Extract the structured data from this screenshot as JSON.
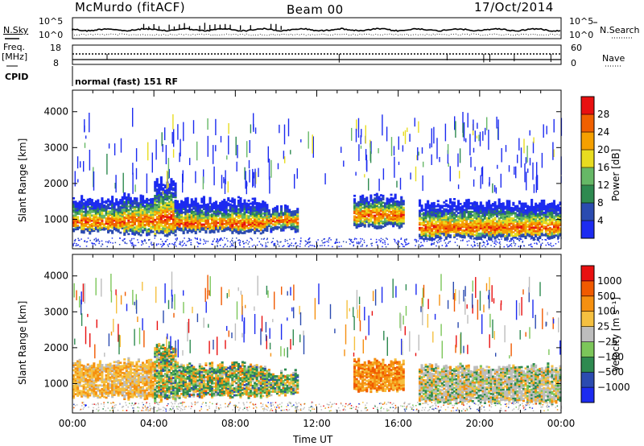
{
  "header": {
    "station": "McMurdo (fitACF)",
    "beam": "Beam 00",
    "date": "17/Oct/2014"
  },
  "noise_panel": {
    "left_label": "N.Sky",
    "left_top_tick": "10^5",
    "left_bottom_tick": "10^0",
    "right_label": "N.Search",
    "right_top_tick": "10^5",
    "right_bottom_tick": "10^0"
  },
  "freq_panel": {
    "left_label_line1": "Freq.",
    "left_label_line2": "[MHz]",
    "left_ticks": [
      "18",
      "8"
    ],
    "right_label": "Nave",
    "right_ticks": [
      "60",
      "0"
    ]
  },
  "cpid": {
    "label": "CPID",
    "text": "normal (fast) 151 RF"
  },
  "colors": {
    "power": [
      "#1c2bf0",
      "#2b4bb0",
      "#2e8a50",
      "#66b866",
      "#e8dc20",
      "#f5a000",
      "#f06000",
      "#e81010"
    ],
    "velocity": [
      "#e81010",
      "#f05a00",
      "#f59010",
      "#f5c040",
      "#bdbdbd",
      "#7cc65a",
      "#2e8a50",
      "#2b4bb0",
      "#1c2bf0"
    ]
  },
  "chart_data": [
    {
      "type": "heatmap",
      "name": "power",
      "ylabel": "Slant Range [km]",
      "xlabel": "Time UT",
      "ylim": [
        180,
        4600
      ],
      "yticks": [
        "1000",
        "2000",
        "3000",
        "4000"
      ],
      "xticks": [
        "00:00",
        "04:00",
        "08:00",
        "12:00",
        "16:00",
        "20:00",
        "00:00"
      ],
      "colorbar_label": "Power [dB]",
      "colorbar_ticks": [
        "4",
        "8",
        "12",
        "16",
        "20",
        "24",
        "28"
      ],
      "bands": [
        {
          "t0": 0.0,
          "t1": 2.5,
          "lo": 650,
          "hi": 1550,
          "core": 900
        },
        {
          "t0": 2.5,
          "t1": 4.0,
          "lo": 600,
          "hi": 1600,
          "core": 950
        },
        {
          "t0": 4.0,
          "t1": 5.0,
          "lo": 550,
          "hi": 2050,
          "core": 1000
        },
        {
          "t0": 5.0,
          "t1": 9.5,
          "lo": 650,
          "hi": 1500,
          "core": 850
        },
        {
          "t0": 9.5,
          "t1": 11.0,
          "lo": 700,
          "hi": 1300,
          "core": 950
        },
        {
          "t0": 13.8,
          "t1": 16.2,
          "lo": 800,
          "hi": 1600,
          "core": 1100
        },
        {
          "t0": 17.0,
          "t1": 24.0,
          "lo": 480,
          "hi": 1450,
          "core": 750
        }
      ]
    },
    {
      "type": "heatmap",
      "name": "velocity",
      "ylabel": "Slant Range [km]",
      "xlabel": "Time UT",
      "ylim": [
        180,
        4600
      ],
      "yticks": [
        "1000",
        "2000",
        "3000",
        "4000"
      ],
      "xticks": [
        "00:00",
        "04:00",
        "08:00",
        "12:00",
        "16:00",
        "20:00",
        "00:00"
      ],
      "colorbar_label": "Velocity [m s⁻¹]",
      "colorbar_ticks": [
        "1000",
        "500",
        "100",
        "25",
        "−25",
        "−100",
        "−500",
        "−1000"
      ],
      "bands": [
        {
          "t0": 0.0,
          "t1": 2.5,
          "lo": 650,
          "hi": 1550,
          "core": 900
        },
        {
          "t0": 2.5,
          "t1": 4.0,
          "lo": 600,
          "hi": 1600,
          "core": 950
        },
        {
          "t0": 4.0,
          "t1": 5.0,
          "lo": 550,
          "hi": 2050,
          "core": 1000
        },
        {
          "t0": 5.0,
          "t1": 9.5,
          "lo": 650,
          "hi": 1500,
          "core": 850
        },
        {
          "t0": 9.5,
          "t1": 11.0,
          "lo": 700,
          "hi": 1300,
          "core": 950
        },
        {
          "t0": 13.8,
          "t1": 16.2,
          "lo": 800,
          "hi": 1600,
          "core": 1100
        },
        {
          "t0": 17.0,
          "t1": 24.0,
          "lo": 480,
          "hi": 1450,
          "core": 750
        }
      ]
    }
  ]
}
